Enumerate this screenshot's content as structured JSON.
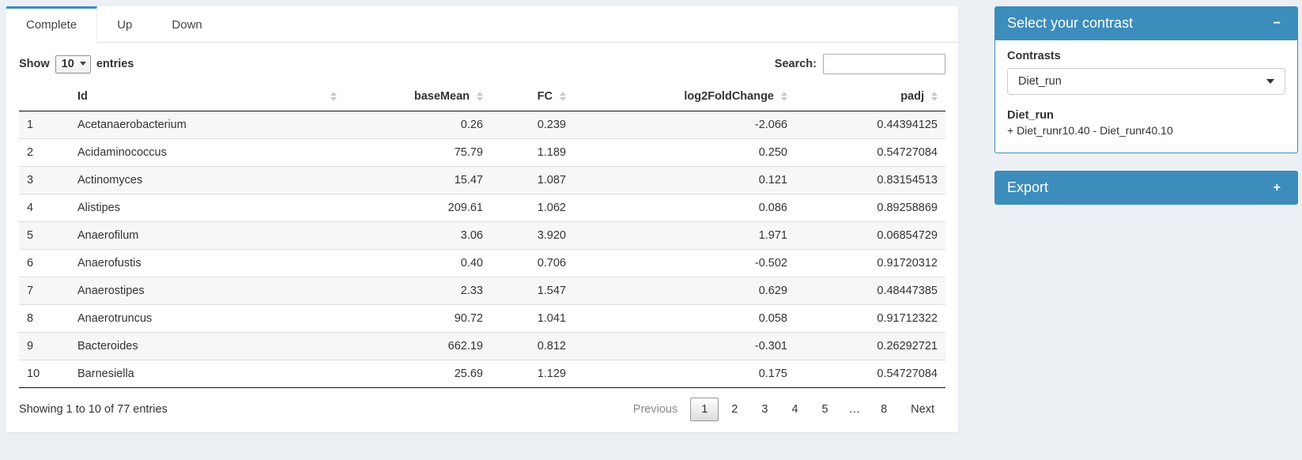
{
  "colors": {
    "primary": "#3c8dbc",
    "page_bg": "#ecf0f5"
  },
  "tabs": [
    {
      "label": "Complete",
      "active": true
    },
    {
      "label": "Up",
      "active": false
    },
    {
      "label": "Down",
      "active": false
    }
  ],
  "length_control": {
    "prefix": "Show",
    "selected": "10",
    "suffix": "entries"
  },
  "search": {
    "label": "Search:",
    "value": "",
    "placeholder": ""
  },
  "table": {
    "columns": [
      {
        "label": "",
        "sortable": false
      },
      {
        "label": "Id",
        "sortable": true
      },
      {
        "label": "baseMean",
        "sortable": true
      },
      {
        "label": "FC",
        "sortable": true
      },
      {
        "label": "log2FoldChange",
        "sortable": true
      },
      {
        "label": "padj",
        "sortable": true
      }
    ],
    "rows": [
      [
        "1",
        "Acetanaerobacterium",
        "0.26",
        "0.239",
        "-2.066",
        "0.44394125"
      ],
      [
        "2",
        "Acidaminococcus",
        "75.79",
        "1.189",
        "0.250",
        "0.54727084"
      ],
      [
        "3",
        "Actinomyces",
        "15.47",
        "1.087",
        "0.121",
        "0.83154513"
      ],
      [
        "4",
        "Alistipes",
        "209.61",
        "1.062",
        "0.086",
        "0.89258869"
      ],
      [
        "5",
        "Anaerofilum",
        "3.06",
        "3.920",
        "1.971",
        "0.06854729"
      ],
      [
        "6",
        "Anaerofustis",
        "0.40",
        "0.706",
        "-0.502",
        "0.91720312"
      ],
      [
        "7",
        "Anaerostipes",
        "2.33",
        "1.547",
        "0.629",
        "0.48447385"
      ],
      [
        "8",
        "Anaerotruncus",
        "90.72",
        "1.041",
        "0.058",
        "0.91712322"
      ],
      [
        "9",
        "Bacteroides",
        "662.19",
        "0.812",
        "-0.301",
        "0.26292721"
      ],
      [
        "10",
        "Barnesiella",
        "25.69",
        "1.129",
        "0.175",
        "0.54727084"
      ]
    ],
    "info": "Showing 1 to 10 of 77 entries",
    "pagination": {
      "previous": "Previous",
      "pages": [
        "1",
        "2",
        "3",
        "4",
        "5",
        "…",
        "8"
      ],
      "current": "1",
      "next": "Next"
    }
  },
  "sidebar": {
    "contrast_panel": {
      "title": "Select your contrast",
      "collapse_icon": "−",
      "contrasts_label": "Contrasts",
      "selected_contrast": "Diet_run",
      "contrast_name": "Diet_run",
      "contrast_formula": "+ Diet_runr10.40 - Diet_runr40.10"
    },
    "export_panel": {
      "title": "Export",
      "collapse_icon": "+"
    }
  }
}
